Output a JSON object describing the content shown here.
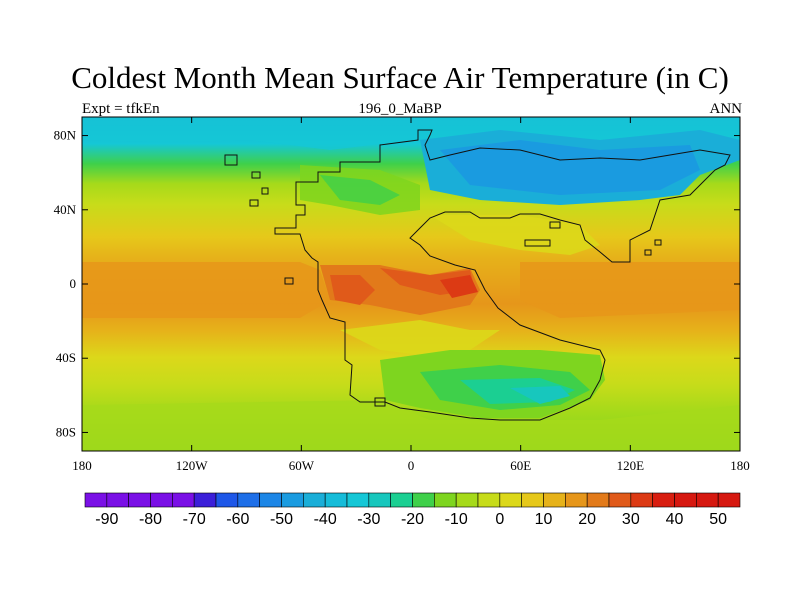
{
  "header": {
    "title": "Coldest Month Mean Surface Air Temperature (in C)",
    "left_label": "Expt = tfkEn",
    "center_label": "196_0_MaBP",
    "right_label": "ANN"
  },
  "map": {
    "variable": "Coldest month mean surface air temperature",
    "units": "C",
    "projection": "cylindrical equidistant",
    "lon_range": [
      -180,
      180
    ],
    "lat_range": [
      -90,
      90
    ],
    "x_ticks": [
      {
        "lon": -180,
        "label": "180"
      },
      {
        "lon": -120,
        "label": "120W"
      },
      {
        "lon": -60,
        "label": "60W"
      },
      {
        "lon": 0,
        "label": "0"
      },
      {
        "lon": 60,
        "label": "60E"
      },
      {
        "lon": 120,
        "label": "120E"
      },
      {
        "lon": 180,
        "label": "180"
      }
    ],
    "y_ticks": [
      {
        "lat": 80,
        "label": "80N"
      },
      {
        "lat": 40,
        "label": "40N"
      },
      {
        "lat": 0,
        "label": "0"
      },
      {
        "lat": -40,
        "label": "40S"
      },
      {
        "lat": -80,
        "label": "80S"
      }
    ]
  },
  "colorbar": {
    "min": -95,
    "max": 55,
    "step": 5,
    "colors": [
      "#7a10e6",
      "#7a10e6",
      "#7a10e6",
      "#7a10e6",
      "#7a10e6",
      "#3b1fd9",
      "#1e57e8",
      "#1e6fe8",
      "#1c86e6",
      "#1a9be0",
      "#1aaed8",
      "#15bcd9",
      "#15c7d6",
      "#17c7bd",
      "#1bcf92",
      "#3fd04a",
      "#7ed51f",
      "#a6da1a",
      "#c7dc1a",
      "#dcd81a",
      "#e6c81a",
      "#e6b21a",
      "#e6961a",
      "#e27a1a",
      "#e05a1a",
      "#dc3a14",
      "#d81e10",
      "#d61810",
      "#d61810",
      "#d61810"
    ],
    "labels": [
      "-90",
      "-80",
      "-70",
      "-60",
      "-50",
      "-40",
      "-30",
      "-20",
      "-10",
      "0",
      "10",
      "20",
      "30",
      "40",
      "50"
    ],
    "label_values": [
      -90,
      -80,
      -70,
      -60,
      -50,
      -40,
      -30,
      -20,
      -10,
      0,
      10,
      20,
      30,
      40,
      50
    ]
  }
}
